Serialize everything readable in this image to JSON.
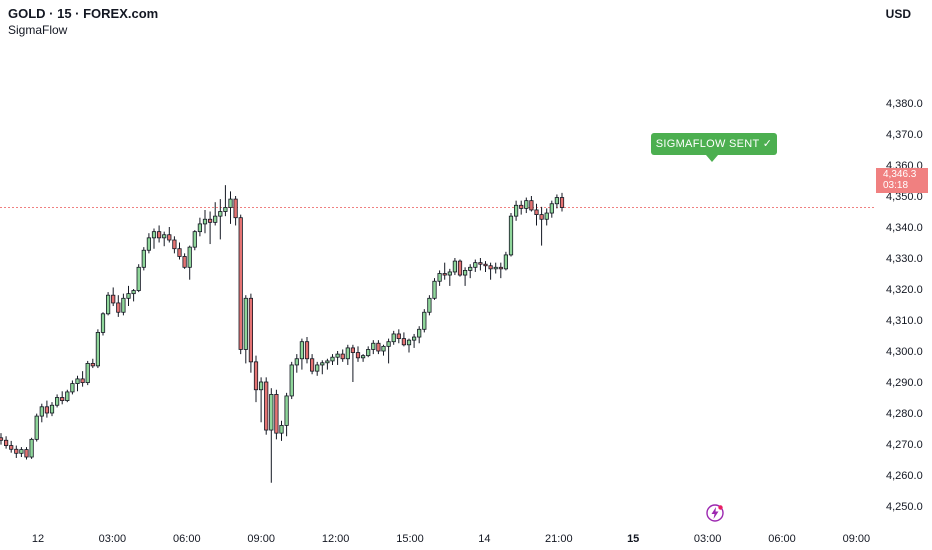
{
  "header": {
    "title": "GOLD · 15 · FOREX.com",
    "indicator": "SigmaFlow",
    "currency": "USD"
  },
  "signal": {
    "label": "SIGMAFLOW SENT ✓",
    "color": "#4caf50"
  },
  "last_price": {
    "value": "4,346.3",
    "countdown": "03:18",
    "color": "#f08080"
  },
  "colors": {
    "up": "#8fd69a",
    "down": "#e57373",
    "wick": "#131722"
  },
  "chart_data": {
    "type": "candlestick",
    "title": "GOLD · 15 · FOREX.com",
    "ylim": [
      4245,
      4390
    ],
    "y_ticks": [
      "4,250.0",
      "4,260.0",
      "4,270.0",
      "4,280.0",
      "4,290.0",
      "4,300.0",
      "4,310.0",
      "4,320.0",
      "4,330.0",
      "4,340.0",
      "4,350.0",
      "4,360.0",
      "4,370.0",
      "4,380.0"
    ],
    "x_ticks": [
      {
        "label": "12",
        "bold": false
      },
      {
        "label": "03:00",
        "bold": false
      },
      {
        "label": "06:00",
        "bold": false
      },
      {
        "label": "09:00",
        "bold": false
      },
      {
        "label": "12:00",
        "bold": false
      },
      {
        "label": "15:00",
        "bold": false
      },
      {
        "label": "14",
        "bold": false
      },
      {
        "label": "21:00",
        "bold": false
      },
      {
        "label": "15",
        "bold": true
      },
      {
        "label": "03:00",
        "bold": false
      },
      {
        "label": "06:00",
        "bold": false
      },
      {
        "label": "09:00",
        "bold": false
      }
    ],
    "last_price": 4346.3,
    "ohlc": [
      [
        4272.0,
        4273.5,
        4269.8,
        4271.2
      ],
      [
        4271.2,
        4272.5,
        4268.5,
        4269.5
      ],
      [
        4269.5,
        4271.0,
        4267.2,
        4268.3
      ],
      [
        4268.3,
        4269.5,
        4265.5,
        4267.0
      ],
      [
        4267.0,
        4269.0,
        4265.8,
        4268.2
      ],
      [
        4268.2,
        4269.0,
        4265.0,
        4265.8
      ],
      [
        4265.8,
        4272.0,
        4265.2,
        4271.5
      ],
      [
        4271.5,
        4279.8,
        4270.8,
        4279.0
      ],
      [
        4279.0,
        4283.0,
        4277.0,
        4282.0
      ],
      [
        4282.0,
        4284.0,
        4278.5,
        4280.0
      ],
      [
        4280.0,
        4283.5,
        4279.0,
        4282.5
      ],
      [
        4282.5,
        4286.0,
        4281.8,
        4285.0
      ],
      [
        4285.0,
        4287.0,
        4282.8,
        4284.0
      ],
      [
        4284.0,
        4287.5,
        4283.5,
        4286.8
      ],
      [
        4286.8,
        4290.5,
        4286.0,
        4289.5
      ],
      [
        4289.5,
        4292.0,
        4287.0,
        4291.0
      ],
      [
        4291.0,
        4293.5,
        4288.5,
        4289.8
      ],
      [
        4289.8,
        4296.8,
        4289.0,
        4296.0
      ],
      [
        4296.0,
        4297.5,
        4294.5,
        4295.2
      ],
      [
        4295.2,
        4307.0,
        4294.5,
        4306.0
      ],
      [
        4306.0,
        4312.5,
        4305.0,
        4312.0
      ],
      [
        4312.0,
        4319.0,
        4311.5,
        4318.0
      ],
      [
        4318.0,
        4320.5,
        4314.5,
        4315.5
      ],
      [
        4315.5,
        4318.0,
        4311.0,
        4312.5
      ],
      [
        4312.5,
        4318.5,
        4311.5,
        4317.0
      ],
      [
        4317.0,
        4321.0,
        4314.5,
        4318.5
      ],
      [
        4318.5,
        4320.0,
        4316.0,
        4319.5
      ],
      [
        4319.5,
        4328.0,
        4319.0,
        4327.0
      ],
      [
        4327.0,
        4333.5,
        4326.0,
        4332.5
      ],
      [
        4332.5,
        4338.0,
        4331.5,
        4336.5
      ],
      [
        4336.5,
        4339.5,
        4333.0,
        4338.5
      ],
      [
        4338.5,
        4340.5,
        4335.0,
        4336.5
      ],
      [
        4336.5,
        4338.5,
        4333.8,
        4337.5
      ],
      [
        4337.5,
        4340.0,
        4335.0,
        4335.8
      ],
      [
        4335.8,
        4337.0,
        4331.5,
        4333.0
      ],
      [
        4333.0,
        4335.0,
        4329.5,
        4330.5
      ],
      [
        4330.5,
        4331.5,
        4326.5,
        4327.0
      ],
      [
        4327.0,
        4334.0,
        4323.0,
        4333.5
      ],
      [
        4333.5,
        4339.0,
        4332.5,
        4338.5
      ],
      [
        4338.5,
        4343.0,
        4337.0,
        4341.0
      ],
      [
        4341.0,
        4345.5,
        4338.0,
        4342.5
      ],
      [
        4342.5,
        4345.0,
        4334.5,
        4341.5
      ],
      [
        4341.5,
        4348.0,
        4340.5,
        4343.5
      ],
      [
        4343.5,
        4349.0,
        4336.0,
        4345.0
      ],
      [
        4345.0,
        4353.5,
        4343.5,
        4346.3
      ],
      [
        4346.3,
        4351.5,
        4341.0,
        4349.0
      ],
      [
        4349.0,
        4350.0,
        4340.5,
        4343.0
      ],
      [
        4343.0,
        4344.0,
        4299.0,
        4300.5
      ],
      [
        4300.5,
        4318.0,
        4296.0,
        4317.0
      ],
      [
        4317.0,
        4318.5,
        4293.0,
        4296.5
      ],
      [
        4296.5,
        4298.5,
        4283.5,
        4287.5
      ],
      [
        4287.5,
        4291.5,
        4277.0,
        4290.0
      ],
      [
        4290.0,
        4291.5,
        4273.0,
        4274.5
      ],
      [
        4274.5,
        4288.0,
        4257.5,
        4286.0
      ],
      [
        4286.0,
        4287.5,
        4271.5,
        4273.5
      ],
      [
        4273.5,
        4277.5,
        4271.0,
        4276.0
      ],
      [
        4276.0,
        4286.5,
        4272.5,
        4285.5
      ],
      [
        4285.5,
        4296.5,
        4284.5,
        4295.5
      ],
      [
        4295.5,
        4299.0,
        4293.0,
        4297.5
      ],
      [
        4297.5,
        4304.0,
        4294.0,
        4303.0
      ],
      [
        4303.0,
        4304.5,
        4296.0,
        4297.5
      ],
      [
        4297.5,
        4299.0,
        4292.5,
        4293.5
      ],
      [
        4293.5,
        4296.5,
        4292.0,
        4295.5
      ],
      [
        4295.5,
        4297.0,
        4292.5,
        4296.2
      ],
      [
        4296.2,
        4297.5,
        4294.0,
        4296.8
      ],
      [
        4296.8,
        4299.0,
        4295.5,
        4298.0
      ],
      [
        4298.0,
        4300.0,
        4295.5,
        4299.0
      ],
      [
        4299.0,
        4300.5,
        4296.5,
        4297.5
      ],
      [
        4297.5,
        4302.0,
        4295.5,
        4301.0
      ],
      [
        4301.0,
        4302.0,
        4290.0,
        4299.5
      ],
      [
        4299.5,
        4301.5,
        4296.5,
        4297.8
      ],
      [
        4297.8,
        4299.0,
        4296.5,
        4298.5
      ],
      [
        4298.5,
        4301.5,
        4298.0,
        4300.5
      ],
      [
        4300.5,
        4303.5,
        4299.0,
        4302.5
      ],
      [
        4302.5,
        4303.5,
        4299.0,
        4300.0
      ],
      [
        4300.0,
        4302.0,
        4298.5,
        4301.5
      ],
      [
        4301.5,
        4304.0,
        4296.0,
        4303.0
      ],
      [
        4303.0,
        4306.5,
        4302.0,
        4305.5
      ],
      [
        4305.5,
        4307.0,
        4302.5,
        4304.0
      ],
      [
        4304.0,
        4306.0,
        4301.5,
        4302.0
      ],
      [
        4302.0,
        4304.0,
        4299.5,
        4303.5
      ],
      [
        4303.5,
        4305.5,
        4301.0,
        4304.5
      ],
      [
        4304.5,
        4308.0,
        4302.5,
        4307.0
      ],
      [
        4307.0,
        4313.5,
        4306.0,
        4312.5
      ],
      [
        4312.5,
        4318.0,
        4311.5,
        4317.0
      ],
      [
        4317.0,
        4323.5,
        4316.5,
        4322.5
      ],
      [
        4322.5,
        4326.0,
        4321.0,
        4325.0
      ],
      [
        4325.0,
        4328.5,
        4323.0,
        4324.5
      ],
      [
        4324.5,
        4326.5,
        4321.0,
        4325.5
      ],
      [
        4325.5,
        4330.0,
        4324.5,
        4329.0
      ],
      [
        4329.0,
        4329.5,
        4324.0,
        4324.5
      ],
      [
        4324.5,
        4327.0,
        4321.0,
        4326.0
      ],
      [
        4326.0,
        4328.0,
        4323.5,
        4327.0
      ],
      [
        4327.0,
        4329.5,
        4325.5,
        4328.5
      ],
      [
        4328.5,
        4330.0,
        4326.0,
        4328.0
      ],
      [
        4328.0,
        4329.0,
        4325.5,
        4327.5
      ],
      [
        4327.5,
        4328.5,
        4323.0,
        4326.5
      ],
      [
        4326.5,
        4328.5,
        4325.0,
        4327.0
      ],
      [
        4327.0,
        4328.5,
        4323.5,
        4326.5
      ],
      [
        4326.5,
        4332.0,
        4326.0,
        4331.0
      ],
      [
        4331.0,
        4344.5,
        4330.5,
        4343.5
      ],
      [
        4343.5,
        4348.5,
        4342.0,
        4347.0
      ],
      [
        4347.0,
        4348.5,
        4344.0,
        4346.0
      ],
      [
        4346.0,
        4349.5,
        4344.5,
        4348.5
      ],
      [
        4348.5,
        4350.0,
        4345.0,
        4345.5
      ],
      [
        4345.5,
        4347.5,
        4340.5,
        4344.0
      ],
      [
        4344.0,
        4346.5,
        4334.0,
        4342.5
      ],
      [
        4342.5,
        4346.0,
        4340.5,
        4344.5
      ],
      [
        4344.5,
        4348.5,
        4343.0,
        4347.5
      ],
      [
        4347.5,
        4350.5,
        4346.0,
        4349.5
      ],
      [
        4349.5,
        4351.0,
        4345.0,
        4346.3
      ]
    ]
  }
}
